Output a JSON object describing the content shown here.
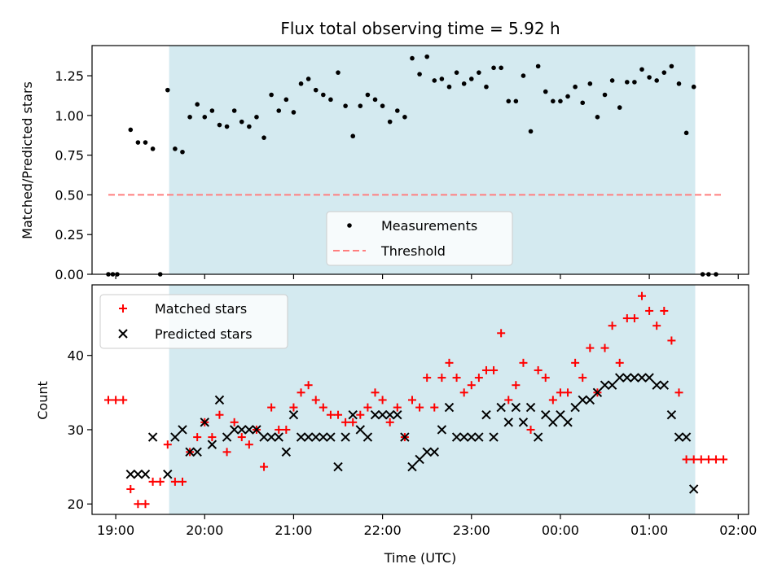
{
  "chart_data": [
    {
      "type": "scatter",
      "title": "Flux total observing time = 5.92 h",
      "xlabel": "",
      "ylabel": "Matched/Predicted stars",
      "xlim": [
        "18:44",
        "02:07"
      ],
      "ylim": [
        0,
        1.44
      ],
      "x_ticks": [
        "19:00",
        "20:00",
        "21:00",
        "22:00",
        "23:00",
        "00:00",
        "01:00",
        "02:00"
      ],
      "y_ticks": [
        "0.00",
        "0.25",
        "0.50",
        "0.75",
        "1.00",
        "1.25"
      ],
      "shaded_span": [
        "19:36",
        "01:31"
      ],
      "legend_position": "lower center",
      "series": [
        {
          "name": "Measurements",
          "marker": "dot",
          "color": "#000000",
          "points": [
            [
              "18:55",
              0.0
            ],
            [
              "18:58",
              0.0
            ],
            [
              "19:01",
              0.0
            ],
            [
              "19:10",
              0.91
            ],
            [
              "19:15",
              0.83
            ],
            [
              "19:20",
              0.83
            ],
            [
              "19:25",
              0.79
            ],
            [
              "19:30",
              0.0
            ],
            [
              "19:35",
              1.16
            ],
            [
              "19:40",
              0.79
            ],
            [
              "19:45",
              0.77
            ],
            [
              "19:50",
              0.99
            ],
            [
              "19:55",
              1.07
            ],
            [
              "20:00",
              0.99
            ],
            [
              "20:05",
              1.03
            ],
            [
              "20:10",
              0.94
            ],
            [
              "20:15",
              0.93
            ],
            [
              "20:20",
              1.03
            ],
            [
              "20:25",
              0.96
            ],
            [
              "20:30",
              0.93
            ],
            [
              "20:35",
              0.99
            ],
            [
              "20:40",
              0.86
            ],
            [
              "20:45",
              1.13
            ],
            [
              "20:50",
              1.03
            ],
            [
              "20:55",
              1.1
            ],
            [
              "21:00",
              1.02
            ],
            [
              "21:05",
              1.2
            ],
            [
              "21:10",
              1.23
            ],
            [
              "21:15",
              1.16
            ],
            [
              "21:20",
              1.13
            ],
            [
              "21:25",
              1.1
            ],
            [
              "21:30",
              1.27
            ],
            [
              "21:35",
              1.06
            ],
            [
              "21:40",
              0.87
            ],
            [
              "21:45",
              1.06
            ],
            [
              "21:50",
              1.13
            ],
            [
              "21:55",
              1.1
            ],
            [
              "22:00",
              1.06
            ],
            [
              "22:05",
              0.96
            ],
            [
              "22:10",
              1.03
            ],
            [
              "22:15",
              0.99
            ],
            [
              "22:20",
              1.36
            ],
            [
              "22:25",
              1.26
            ],
            [
              "22:30",
              1.37
            ],
            [
              "22:35",
              1.22
            ],
            [
              "22:40",
              1.23
            ],
            [
              "22:45",
              1.18
            ],
            [
              "22:50",
              1.27
            ],
            [
              "22:55",
              1.2
            ],
            [
              "23:00",
              1.23
            ],
            [
              "23:05",
              1.27
            ],
            [
              "23:10",
              1.18
            ],
            [
              "23:15",
              1.3
            ],
            [
              "23:20",
              1.3
            ],
            [
              "23:25",
              1.09
            ],
            [
              "23:30",
              1.09
            ],
            [
              "23:35",
              1.25
            ],
            [
              "23:40",
              0.9
            ],
            [
              "23:45",
              1.31
            ],
            [
              "23:50",
              1.15
            ],
            [
              "23:55",
              1.09
            ],
            [
              "00:00",
              1.09
            ],
            [
              "00:05",
              1.12
            ],
            [
              "00:10",
              1.18
            ],
            [
              "00:15",
              1.08
            ],
            [
              "00:20",
              1.2
            ],
            [
              "00:25",
              0.99
            ],
            [
              "00:30",
              1.13
            ],
            [
              "00:35",
              1.22
            ],
            [
              "00:40",
              1.05
            ],
            [
              "00:45",
              1.21
            ],
            [
              "00:50",
              1.21
            ],
            [
              "00:55",
              1.29
            ],
            [
              "01:00",
              1.24
            ],
            [
              "01:05",
              1.22
            ],
            [
              "01:10",
              1.27
            ],
            [
              "01:15",
              1.31
            ],
            [
              "01:20",
              1.2
            ],
            [
              "01:25",
              0.89
            ],
            [
              "01:30",
              1.18
            ],
            [
              "01:36",
              0.0
            ],
            [
              "01:40",
              0.0
            ],
            [
              "01:45",
              0.0
            ]
          ]
        },
        {
          "name": "Threshold",
          "marker": "dashed-line",
          "color": "#ff7f7f",
          "points": [
            [
              "18:55",
              0.5
            ],
            [
              "01:50",
              0.5
            ]
          ]
        }
      ]
    },
    {
      "type": "scatter",
      "title": "",
      "xlabel": "Time (UTC)",
      "ylabel": "Count",
      "xlim": [
        "18:44",
        "02:07"
      ],
      "ylim": [
        18.6,
        49.5
      ],
      "x_ticks": [
        "19:00",
        "20:00",
        "21:00",
        "22:00",
        "23:00",
        "00:00",
        "01:00",
        "02:00"
      ],
      "y_ticks": [
        "20",
        "30",
        "40"
      ],
      "shaded_span": [
        "19:36",
        "01:31"
      ],
      "legend_position": "upper left",
      "series": [
        {
          "name": "Matched stars",
          "marker": "plus",
          "color": "#ff0000",
          "points": [
            [
              "18:55",
              34
            ],
            [
              "19:00",
              34
            ],
            [
              "19:05",
              34
            ],
            [
              "19:10",
              22
            ],
            [
              "19:15",
              20
            ],
            [
              "19:20",
              20
            ],
            [
              "19:25",
              23
            ],
            [
              "19:30",
              23
            ],
            [
              "19:35",
              28
            ],
            [
              "19:40",
              23
            ],
            [
              "19:45",
              23
            ],
            [
              "19:50",
              27
            ],
            [
              "19:55",
              29
            ],
            [
              "20:00",
              31
            ],
            [
              "20:05",
              29
            ],
            [
              "20:10",
              32
            ],
            [
              "20:15",
              27
            ],
            [
              "20:20",
              31
            ],
            [
              "20:25",
              29
            ],
            [
              "20:30",
              28
            ],
            [
              "20:35",
              30
            ],
            [
              "20:40",
              25
            ],
            [
              "20:45",
              33
            ],
            [
              "20:50",
              30
            ],
            [
              "20:55",
              30
            ],
            [
              "21:00",
              33
            ],
            [
              "21:05",
              35
            ],
            [
              "21:10",
              36
            ],
            [
              "21:15",
              34
            ],
            [
              "21:20",
              33
            ],
            [
              "21:25",
              32
            ],
            [
              "21:30",
              32
            ],
            [
              "21:35",
              31
            ],
            [
              "21:40",
              31
            ],
            [
              "21:45",
              32
            ],
            [
              "21:50",
              33
            ],
            [
              "21:55",
              35
            ],
            [
              "22:00",
              34
            ],
            [
              "22:05",
              31
            ],
            [
              "22:10",
              33
            ],
            [
              "22:15",
              29
            ],
            [
              "22:20",
              34
            ],
            [
              "22:25",
              33
            ],
            [
              "22:30",
              37
            ],
            [
              "22:35",
              33
            ],
            [
              "22:40",
              37
            ],
            [
              "22:45",
              39
            ],
            [
              "22:50",
              37
            ],
            [
              "22:55",
              35
            ],
            [
              "23:00",
              36
            ],
            [
              "23:05",
              37
            ],
            [
              "23:10",
              38
            ],
            [
              "23:15",
              38
            ],
            [
              "23:20",
              43
            ],
            [
              "23:25",
              34
            ],
            [
              "23:30",
              36
            ],
            [
              "23:35",
              39
            ],
            [
              "23:40",
              30
            ],
            [
              "23:45",
              38
            ],
            [
              "23:50",
              37
            ],
            [
              "23:55",
              34
            ],
            [
              "00:00",
              35
            ],
            [
              "00:05",
              35
            ],
            [
              "00:10",
              39
            ],
            [
              "00:15",
              37
            ],
            [
              "00:20",
              41
            ],
            [
              "00:25",
              35
            ],
            [
              "00:30",
              41
            ],
            [
              "00:35",
              44
            ],
            [
              "00:40",
              39
            ],
            [
              "00:45",
              45
            ],
            [
              "00:50",
              45
            ],
            [
              "00:55",
              48
            ],
            [
              "01:00",
              46
            ],
            [
              "01:05",
              44
            ],
            [
              "01:10",
              46
            ],
            [
              "01:15",
              42
            ],
            [
              "01:20",
              35
            ],
            [
              "01:25",
              26
            ],
            [
              "01:30",
              26
            ],
            [
              "01:35",
              26
            ],
            [
              "01:40",
              26
            ],
            [
              "01:45",
              26
            ],
            [
              "01:50",
              26
            ]
          ]
        },
        {
          "name": "Predicted stars",
          "marker": "x",
          "color": "#000000",
          "points": [
            [
              "19:10",
              24
            ],
            [
              "19:15",
              24
            ],
            [
              "19:20",
              24
            ],
            [
              "19:25",
              29
            ],
            [
              "19:35",
              24
            ],
            [
              "19:40",
              29
            ],
            [
              "19:45",
              30
            ],
            [
              "19:50",
              27
            ],
            [
              "19:55",
              27
            ],
            [
              "20:00",
              31
            ],
            [
              "20:05",
              28
            ],
            [
              "20:10",
              34
            ],
            [
              "20:15",
              29
            ],
            [
              "20:20",
              30
            ],
            [
              "20:25",
              30
            ],
            [
              "20:30",
              30
            ],
            [
              "20:35",
              30
            ],
            [
              "20:40",
              29
            ],
            [
              "20:45",
              29
            ],
            [
              "20:50",
              29
            ],
            [
              "20:55",
              27
            ],
            [
              "21:00",
              32
            ],
            [
              "21:05",
              29
            ],
            [
              "21:10",
              29
            ],
            [
              "21:15",
              29
            ],
            [
              "21:20",
              29
            ],
            [
              "21:25",
              29
            ],
            [
              "21:30",
              25
            ],
            [
              "21:35",
              29
            ],
            [
              "21:40",
              32
            ],
            [
              "21:45",
              30
            ],
            [
              "21:50",
              29
            ],
            [
              "21:55",
              32
            ],
            [
              "22:00",
              32
            ],
            [
              "22:05",
              32
            ],
            [
              "22:10",
              32
            ],
            [
              "22:15",
              29
            ],
            [
              "22:20",
              25
            ],
            [
              "22:25",
              26
            ],
            [
              "22:30",
              27
            ],
            [
              "22:35",
              27
            ],
            [
              "22:40",
              30
            ],
            [
              "22:45",
              33
            ],
            [
              "22:50",
              29
            ],
            [
              "22:55",
              29
            ],
            [
              "23:00",
              29
            ],
            [
              "23:05",
              29
            ],
            [
              "23:10",
              32
            ],
            [
              "23:15",
              29
            ],
            [
              "23:20",
              33
            ],
            [
              "23:25",
              31
            ],
            [
              "23:30",
              33
            ],
            [
              "23:35",
              31
            ],
            [
              "23:40",
              33
            ],
            [
              "23:45",
              29
            ],
            [
              "23:50",
              32
            ],
            [
              "23:55",
              31
            ],
            [
              "00:00",
              32
            ],
            [
              "00:05",
              31
            ],
            [
              "00:10",
              33
            ],
            [
              "00:15",
              34
            ],
            [
              "00:20",
              34
            ],
            [
              "00:25",
              35
            ],
            [
              "00:30",
              36
            ],
            [
              "00:35",
              36
            ],
            [
              "00:40",
              37
            ],
            [
              "00:45",
              37
            ],
            [
              "00:50",
              37
            ],
            [
              "00:55",
              37
            ],
            [
              "01:00",
              37
            ],
            [
              "01:05",
              36
            ],
            [
              "01:10",
              36
            ],
            [
              "01:15",
              32
            ],
            [
              "01:20",
              29
            ],
            [
              "01:25",
              29
            ],
            [
              "01:30",
              22
            ]
          ]
        }
      ]
    }
  ],
  "colors": {
    "shade": "#d4eaf0",
    "threshold": "#ff7f7f",
    "matched": "#ff0000",
    "predicted": "#000000",
    "measurements": "#000000"
  }
}
